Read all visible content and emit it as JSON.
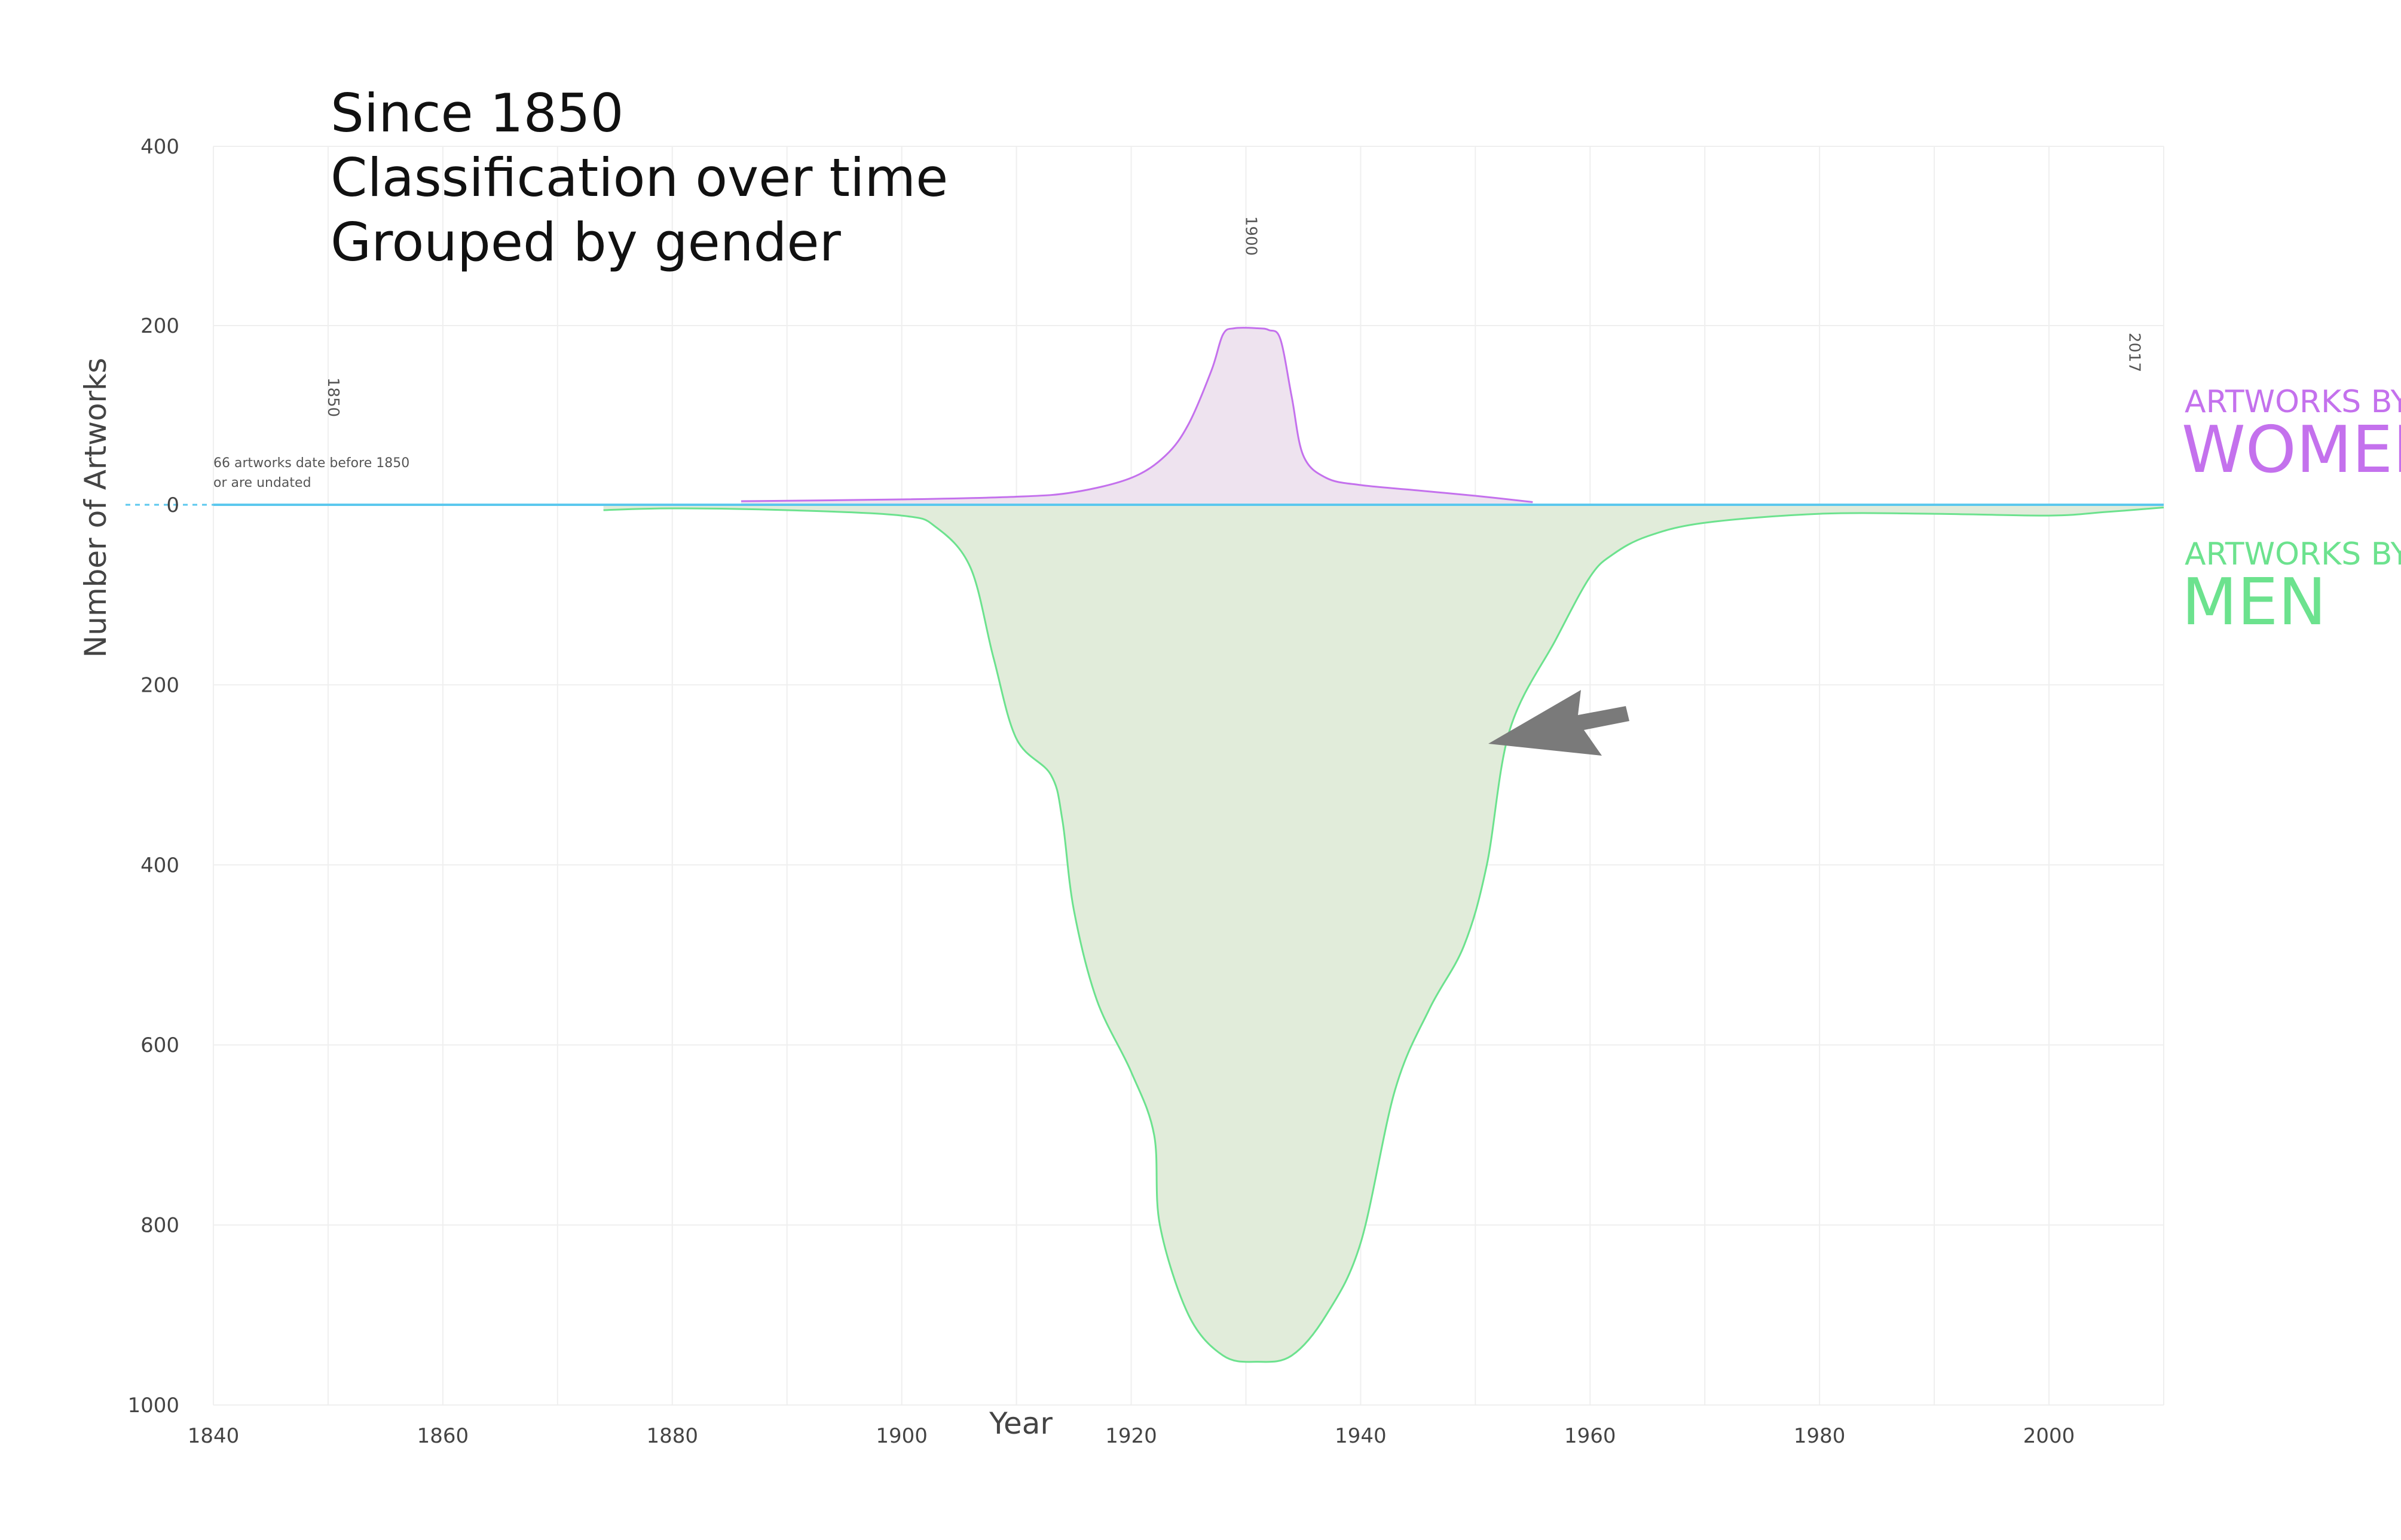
{
  "chart_data": {
    "type": "area",
    "title_lines": [
      "Since 1850",
      "Classification over time",
      "Grouped by gender"
    ],
    "xlabel": "Year",
    "ylabel": "Number of Artworks",
    "xlim": [
      1840,
      2010
    ],
    "ylim_top": 400,
    "ylim_bottom": 1000,
    "x_ticks": [
      1840,
      1860,
      1880,
      1900,
      1920,
      1940,
      1960,
      1980,
      2000
    ],
    "y_ticks_top": [
      400,
      200,
      0
    ],
    "y_ticks_bottom": [
      200,
      400,
      600,
      800,
      1000
    ],
    "year_markers": [
      {
        "label": "1850",
        "x": 1850,
        "y": 120
      },
      {
        "label": "1900",
        "x": 1930,
        "y": 300
      },
      {
        "label": "2017",
        "x": 2007,
        "y": 170
      }
    ],
    "note": {
      "line1": "66 artworks date before 1850",
      "line2": "or are undated"
    },
    "legend": [
      {
        "small": "ARTWORKS BY",
        "big": "WOMEN"
      },
      {
        "small": "ARTWORKS BY",
        "big": "MEN"
      }
    ],
    "series": [
      {
        "name": "WOMEN",
        "direction": "up",
        "color": "#c471ed",
        "fill": "#eee3ef",
        "points": [
          [
            1886,
            4
          ],
          [
            1900,
            6
          ],
          [
            1910,
            9
          ],
          [
            1915,
            14
          ],
          [
            1920,
            30
          ],
          [
            1923,
            55
          ],
          [
            1925,
            90
          ],
          [
            1927,
            150
          ],
          [
            1928,
            190
          ],
          [
            1929,
            197
          ],
          [
            1931,
            197
          ],
          [
            1932,
            195
          ],
          [
            1933,
            185
          ],
          [
            1934,
            120
          ],
          [
            1935,
            55
          ],
          [
            1937,
            30
          ],
          [
            1940,
            22
          ],
          [
            1945,
            16
          ],
          [
            1950,
            10
          ],
          [
            1955,
            3
          ]
        ]
      },
      {
        "name": "MEN",
        "direction": "down",
        "color": "#6ce28e",
        "fill": "#e1ecda",
        "points": [
          [
            1874,
            6
          ],
          [
            1880,
            4
          ],
          [
            1890,
            6
          ],
          [
            1900,
            12
          ],
          [
            1903,
            25
          ],
          [
            1906,
            70
          ],
          [
            1908,
            170
          ],
          [
            1910,
            260
          ],
          [
            1913,
            300
          ],
          [
            1914,
            350
          ],
          [
            1915,
            450
          ],
          [
            1917,
            550
          ],
          [
            1920,
            630
          ],
          [
            1922,
            700
          ],
          [
            1922.5,
            800
          ],
          [
            1925,
            900
          ],
          [
            1928,
            945
          ],
          [
            1931,
            952
          ],
          [
            1934,
            945
          ],
          [
            1937,
            900
          ],
          [
            1940,
            820
          ],
          [
            1943,
            650
          ],
          [
            1946,
            560
          ],
          [
            1949,
            490
          ],
          [
            1951,
            400
          ],
          [
            1953,
            250
          ],
          [
            1957,
            150
          ],
          [
            1960,
            80
          ],
          [
            1962,
            55
          ],
          [
            1965,
            35
          ],
          [
            1970,
            20
          ],
          [
            1980,
            10
          ],
          [
            1990,
            10
          ],
          [
            2000,
            12
          ],
          [
            2005,
            8
          ],
          [
            2010,
            3
          ]
        ]
      }
    ],
    "colors": {
      "zero_line": "#5bc8ee",
      "arrow": "#7a7a7a",
      "grid": "#efefef"
    }
  }
}
